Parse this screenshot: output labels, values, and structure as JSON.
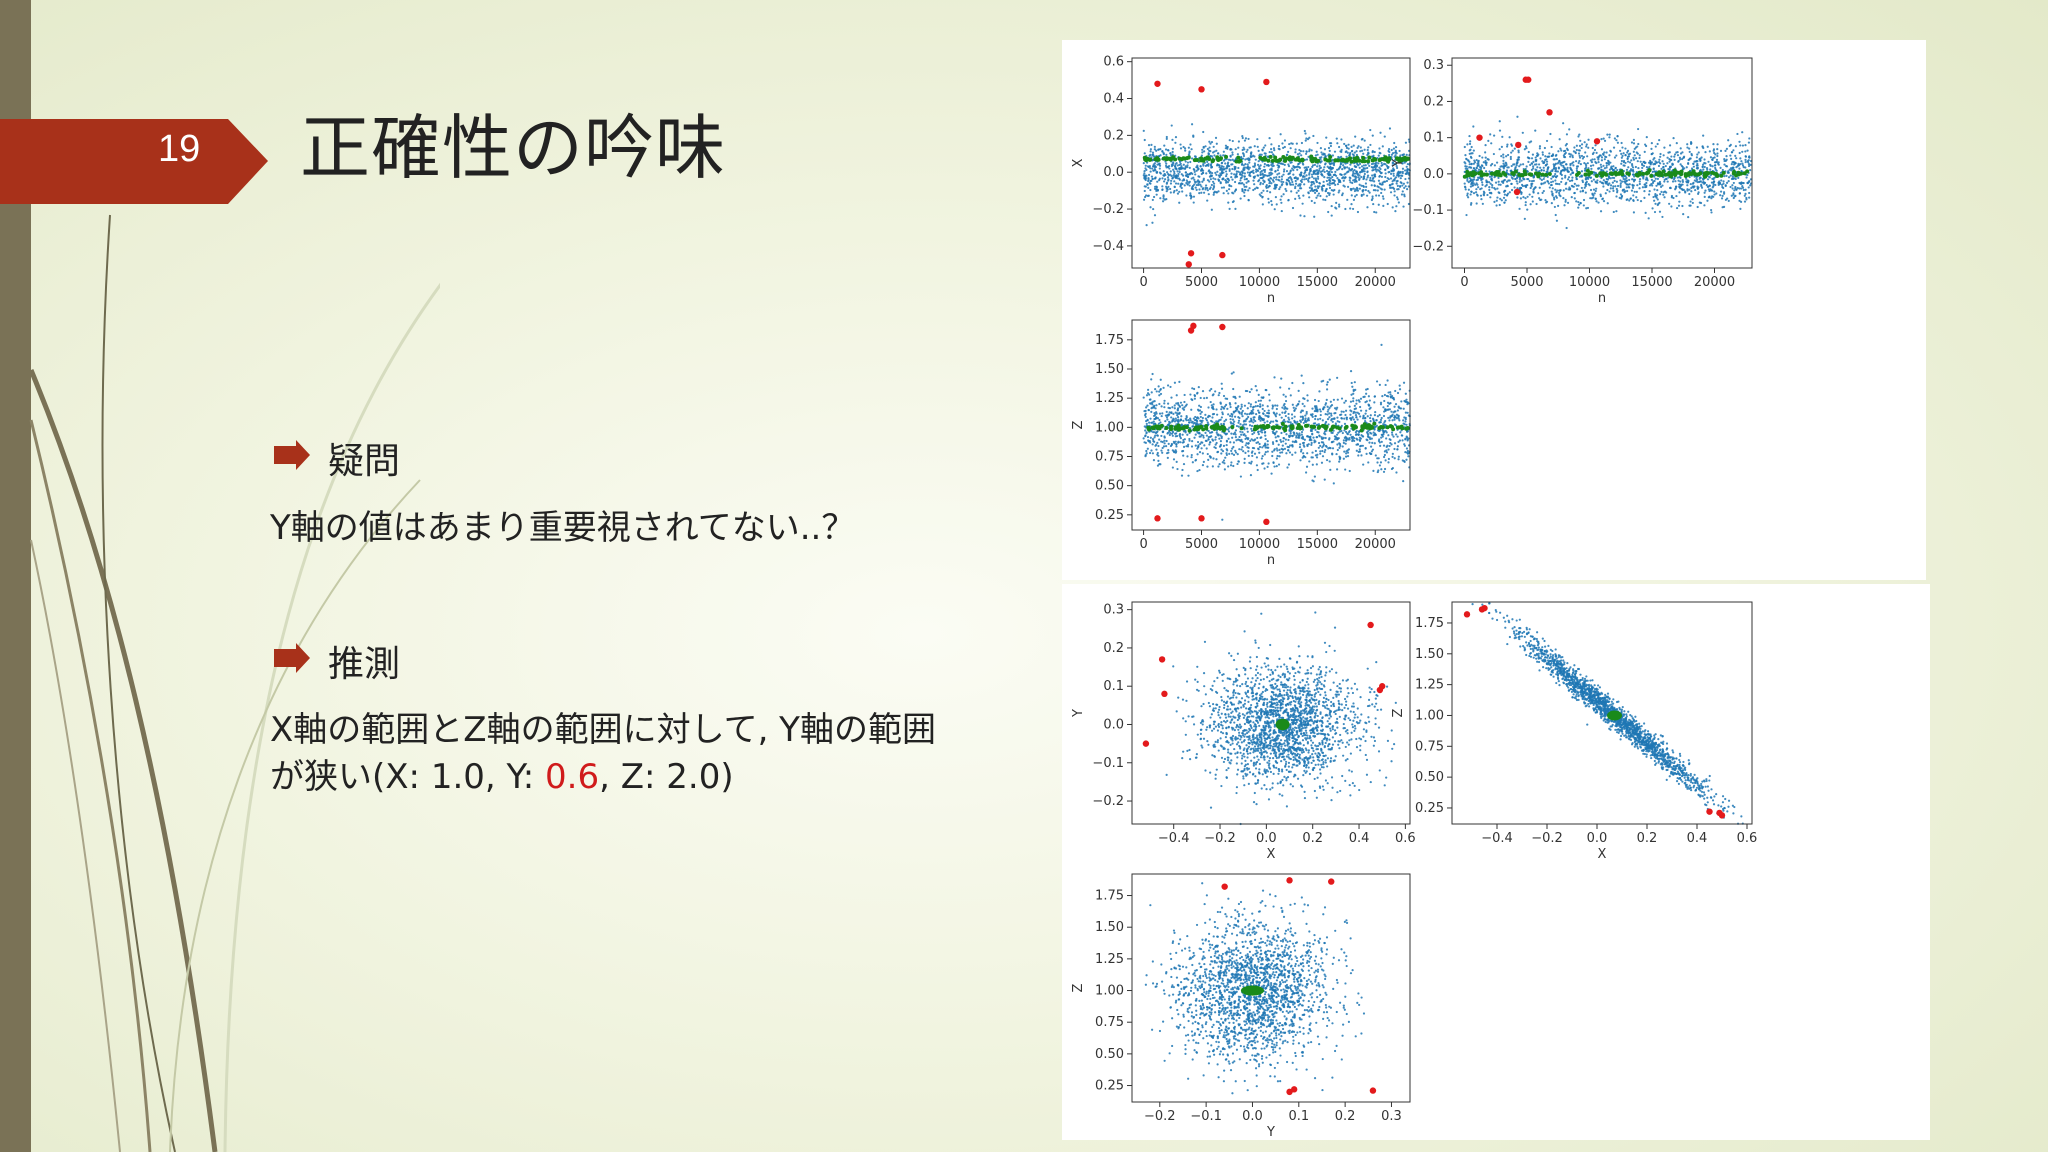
{
  "slide": {
    "number": "19",
    "title": "正確性の吟味",
    "bullets": [
      {
        "heading": "疑問",
        "lines": [
          "Y軸の値はあまり重要視されてない..？"
        ]
      },
      {
        "heading": "推測",
        "line1": "X軸の範囲とZ軸の範囲に対して, Y軸の範囲",
        "line2_prefix": "が狭い(X: 1.0, Y: ",
        "line2_highlight": "0.6",
        "line2_suffix": ", Z: 2.0)"
      }
    ]
  },
  "colors": {
    "accent": "#a8311a",
    "series_main": "#1f77b4",
    "series_center": "#1a8a1a",
    "series_outlier": "#e31a1c",
    "highlight": "#d01b1b"
  },
  "chart_data": [
    {
      "type": "scatter",
      "xlabel": "n",
      "ylabel": "X",
      "xlim": [
        -1000,
        23000
      ],
      "ylim": [
        -0.52,
        0.62
      ],
      "xticks": [
        "0",
        "5000",
        "10000",
        "15000",
        "20000"
      ],
      "yticks": [
        "−0.4",
        "−0.2",
        "0.0",
        "0.2",
        "0.4",
        "0.6"
      ],
      "series": [
        {
          "kind": "band",
          "y_center": 0.0,
          "y_spread": 0.15,
          "x_range": [
            0,
            23000
          ]
        },
        {
          "kind": "center_line",
          "y": 0.07
        },
        {
          "kind": "outliers",
          "x": [
            1200,
            5000,
            10600,
            4100,
            3900,
            6800
          ],
          "y": [
            0.48,
            0.45,
            0.49,
            -0.44,
            -0.5,
            -0.45
          ]
        }
      ]
    },
    {
      "type": "scatter",
      "xlabel": "n",
      "ylabel": "Y",
      "xlim": [
        -1000,
        23000
      ],
      "ylim": [
        -0.26,
        0.32
      ],
      "xticks": [
        "0",
        "5000",
        "10000",
        "15000",
        "20000"
      ],
      "yticks": [
        "−0.2",
        "−0.1",
        "0.0",
        "0.1",
        "0.2",
        "0.3"
      ],
      "series": [
        {
          "kind": "band",
          "y_center": 0.0,
          "y_spread": 0.08,
          "x_range": [
            0,
            23000
          ]
        },
        {
          "kind": "center_line",
          "y": 0.0
        },
        {
          "kind": "outliers",
          "x": [
            1200,
            4900,
            5100,
            6800,
            4300,
            10600,
            4200
          ],
          "y": [
            0.1,
            0.26,
            0.26,
            0.17,
            0.08,
            0.09,
            -0.05
          ]
        }
      ]
    },
    {
      "type": "scatter",
      "xlabel": "n",
      "ylabel": "Z",
      "xlim": [
        -1000,
        23000
      ],
      "ylim": [
        0.12,
        1.92
      ],
      "xticks": [
        "0",
        "5000",
        "10000",
        "15000",
        "20000"
      ],
      "yticks": [
        "0.25",
        "0.50",
        "0.75",
        "1.00",
        "1.25",
        "1.50",
        "1.75"
      ],
      "series": [
        {
          "kind": "band",
          "y_center": 1.0,
          "y_spread": 0.3,
          "x_range": [
            0,
            23000
          ]
        },
        {
          "kind": "center_line",
          "y": 1.0
        },
        {
          "kind": "outliers",
          "x": [
            4100,
            4300,
            6800,
            1200,
            5000,
            10600
          ],
          "y": [
            1.83,
            1.87,
            1.86,
            0.22,
            0.22,
            0.19
          ]
        }
      ]
    },
    {
      "type": "scatter",
      "xlabel": "X",
      "ylabel": "Y",
      "xlim": [
        -0.58,
        0.62
      ],
      "ylim": [
        -0.26,
        0.32
      ],
      "xticks": [
        "−0.4",
        "−0.2",
        "0.0",
        "0.2",
        "0.4",
        "0.6"
      ],
      "yticks": [
        "−0.2",
        "−0.1",
        "0.0",
        "0.1",
        "0.2",
        "0.3"
      ],
      "series": [
        {
          "kind": "blob",
          "cx": 0.07,
          "cy": 0.0,
          "rx": 0.36,
          "ry": 0.17
        },
        {
          "kind": "center_blob",
          "cx": 0.07,
          "cy": 0.0,
          "rx": 0.03,
          "ry": 0.015
        },
        {
          "kind": "outliers",
          "x": [
            -0.45,
            -0.44,
            -0.52,
            0.45,
            0.49,
            0.5
          ],
          "y": [
            0.17,
            0.08,
            -0.05,
            0.26,
            0.09,
            0.1
          ]
        }
      ]
    },
    {
      "type": "scatter",
      "xlabel": "X",
      "ylabel": "Z",
      "xlim": [
        -0.58,
        0.62
      ],
      "ylim": [
        0.12,
        1.92
      ],
      "xticks": [
        "−0.4",
        "−0.2",
        "0.0",
        "0.2",
        "0.4",
        "0.6"
      ],
      "yticks": [
        "0.25",
        "0.50",
        "0.75",
        "1.00",
        "1.25",
        "1.50",
        "1.75"
      ],
      "series": [
        {
          "kind": "diag_blob",
          "cx": 0.07,
          "cy": 1.0,
          "slope": -1.7,
          "len": 0.42,
          "width": 0.12
        },
        {
          "kind": "center_blob",
          "cx": 0.07,
          "cy": 1.0,
          "rx": 0.03,
          "ry": 0.04
        },
        {
          "kind": "outliers",
          "x": [
            -0.52,
            -0.46,
            -0.45,
            0.45,
            0.49,
            0.5
          ],
          "y": [
            1.82,
            1.86,
            1.87,
            0.22,
            0.21,
            0.19
          ]
        }
      ]
    },
    {
      "type": "scatter",
      "xlabel": "Y",
      "ylabel": "Z",
      "xlim": [
        -0.26,
        0.34
      ],
      "ylim": [
        0.12,
        1.92
      ],
      "xticks": [
        "−0.2",
        "−0.1",
        "0.0",
        "0.1",
        "0.2",
        "0.3"
      ],
      "yticks": [
        "0.25",
        "0.50",
        "0.75",
        "1.00",
        "1.25",
        "1.50",
        "1.75"
      ],
      "series": [
        {
          "kind": "blob",
          "cx": 0.0,
          "cy": 1.0,
          "rx": 0.18,
          "ry": 0.6
        },
        {
          "kind": "center_blob",
          "cx": 0.0,
          "cy": 1.0,
          "rx": 0.025,
          "ry": 0.04
        },
        {
          "kind": "outliers",
          "x": [
            -0.06,
            0.08,
            0.17,
            0.08,
            0.09,
            0.26
          ],
          "y": [
            1.82,
            1.87,
            1.86,
            0.2,
            0.22,
            0.21
          ]
        }
      ]
    }
  ]
}
